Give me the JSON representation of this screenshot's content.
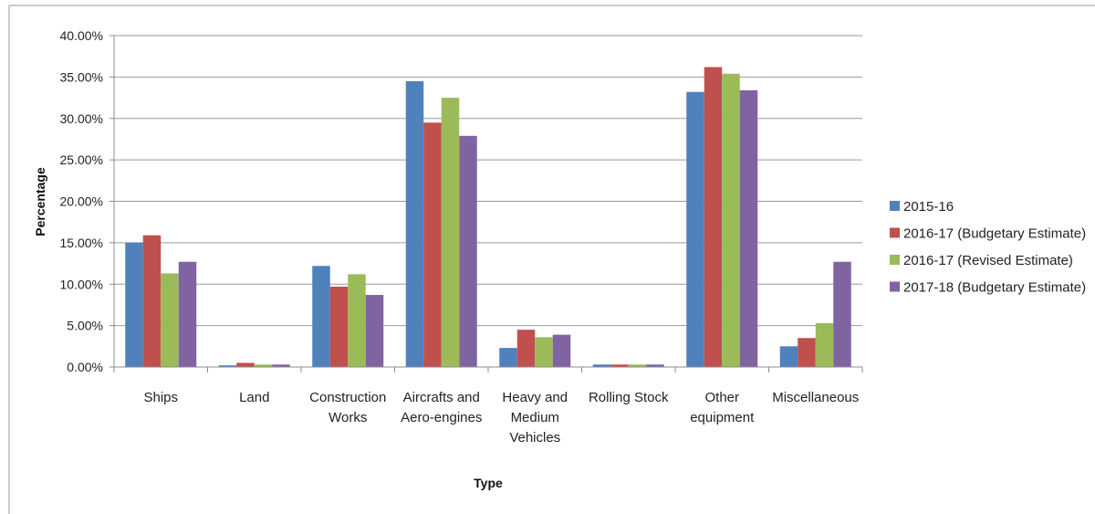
{
  "chart_data": {
    "type": "bar",
    "title": "",
    "xlabel": "Type",
    "ylabel": "Percentage",
    "ylim": [
      0,
      40
    ],
    "yticks": [
      0,
      5,
      10,
      15,
      20,
      25,
      30,
      35,
      40
    ],
    "ytick_labels": [
      "0.00%",
      "5.00%",
      "10.00%",
      "15.00%",
      "20.00%",
      "25.00%",
      "30.00%",
      "35.00%",
      "40.00%"
    ],
    "grid": true,
    "legend_position": "right",
    "categories": [
      [
        "Ships"
      ],
      [
        "Land"
      ],
      [
        "Construction",
        "Works"
      ],
      [
        "Aircrafts and",
        "Aero-engines"
      ],
      [
        "Heavy and",
        "Medium",
        "Vehicles"
      ],
      [
        "Rolling Stock"
      ],
      [
        "Other",
        "equipment"
      ],
      [
        "Miscellaneous"
      ]
    ],
    "series": [
      {
        "name": "2015-16",
        "color": "#4F81BD",
        "values": [
          15.0,
          0.2,
          12.2,
          34.5,
          2.3,
          0.3,
          33.2,
          2.5
        ]
      },
      {
        "name": "2016-17 (Budgetary Estimate)",
        "color": "#C0504D",
        "values": [
          15.9,
          0.5,
          9.7,
          29.5,
          4.5,
          0.3,
          36.2,
          3.5
        ]
      },
      {
        "name": "2016-17 (Revised Estimate)",
        "color": "#9BBB59",
        "values": [
          11.3,
          0.3,
          11.2,
          32.5,
          3.6,
          0.3,
          35.4,
          5.3
        ]
      },
      {
        "name": "2017-18 (Budgetary Estimate)",
        "color": "#8064A2",
        "values": [
          12.7,
          0.3,
          8.7,
          27.9,
          3.9,
          0.3,
          33.4,
          12.7
        ]
      }
    ]
  }
}
